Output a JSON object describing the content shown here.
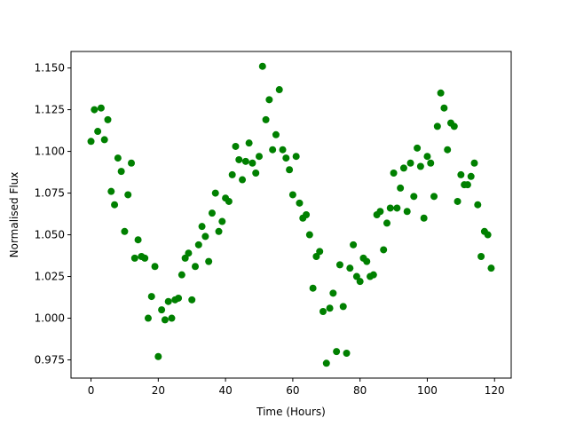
{
  "chart_data": {
    "type": "scatter",
    "x_label": "Time (Hours)",
    "y_label": "Normalised Flux",
    "color": "#008000",
    "x": [
      0,
      1,
      2,
      3,
      4,
      5,
      6,
      7,
      8,
      9,
      10,
      11,
      12,
      13,
      14,
      15,
      16,
      17,
      18,
      19,
      20,
      21,
      22,
      23,
      24,
      25,
      26,
      27,
      28,
      29,
      30,
      31,
      32,
      33,
      34,
      35,
      36,
      37,
      38,
      39,
      40,
      41,
      42,
      43,
      44,
      45,
      46,
      47,
      48,
      49,
      50,
      51,
      52,
      53,
      54,
      55,
      56,
      57,
      58,
      59,
      60,
      61,
      62,
      63,
      64,
      65,
      66,
      67,
      68,
      69,
      70,
      71,
      72,
      73,
      74,
      75,
      76,
      77,
      78,
      79,
      80,
      81,
      82,
      83,
      84,
      85,
      86,
      87,
      88,
      89,
      90,
      91,
      92,
      93,
      94,
      95,
      96,
      97,
      98,
      99,
      100,
      101,
      102,
      103,
      104,
      105,
      106,
      107,
      108,
      109,
      110,
      111,
      112,
      113,
      114,
      115,
      116,
      117,
      118,
      119
    ],
    "values": [
      1.106,
      1.125,
      1.112,
      1.126,
      1.107,
      1.119,
      1.076,
      1.068,
      1.096,
      1.088,
      1.052,
      1.074,
      1.093,
      1.036,
      1.047,
      1.037,
      1.036,
      1.0,
      1.013,
      1.031,
      0.977,
      1.005,
      0.999,
      1.01,
      1.0,
      1.011,
      1.012,
      1.026,
      1.036,
      1.039,
      1.011,
      1.031,
      1.044,
      1.055,
      1.049,
      1.034,
      1.063,
      1.075,
      1.052,
      1.058,
      1.072,
      1.07,
      1.086,
      1.103,
      1.095,
      1.083,
      1.094,
      1.105,
      1.093,
      1.087,
      1.097,
      1.151,
      1.119,
      1.131,
      1.101,
      1.11,
      1.137,
      1.101,
      1.096,
      1.089,
      1.074,
      1.097,
      1.069,
      1.06,
      1.062,
      1.05,
      1.018,
      1.037,
      1.04,
      1.004,
      0.973,
      1.006,
      1.015,
      0.98,
      1.032,
      1.007,
      0.979,
      1.03,
      1.044,
      1.025,
      1.022,
      1.036,
      1.034,
      1.025,
      1.026,
      1.062,
      1.064,
      1.041,
      1.057,
      1.066,
      1.087,
      1.066,
      1.078,
      1.09,
      1.064,
      1.093,
      1.073,
      1.102,
      1.091,
      1.06,
      1.097,
      1.093,
      1.073,
      1.115,
      1.135,
      1.126,
      1.101,
      1.117,
      1.115,
      1.07,
      1.086,
      1.08,
      1.08,
      1.085,
      1.093,
      1.068,
      1.037,
      1.052,
      1.05,
      1.03
    ],
    "xlim": [
      -5.95,
      124.95
    ],
    "xticks": [
      0,
      20,
      40,
      60,
      80,
      100,
      120
    ],
    "ylim": [
      0.9641,
      1.1599
    ],
    "yticks": [
      0.975,
      {
        "value": 1.0,
        "label": "1.000"
      },
      1.025,
      {
        "value": 1.05,
        "label": "1.050"
      },
      1.075,
      {
        "value": 1.1,
        "label": "1.100"
      },
      1.125,
      {
        "value": 1.15,
        "label": "1.150"
      }
    ]
  }
}
